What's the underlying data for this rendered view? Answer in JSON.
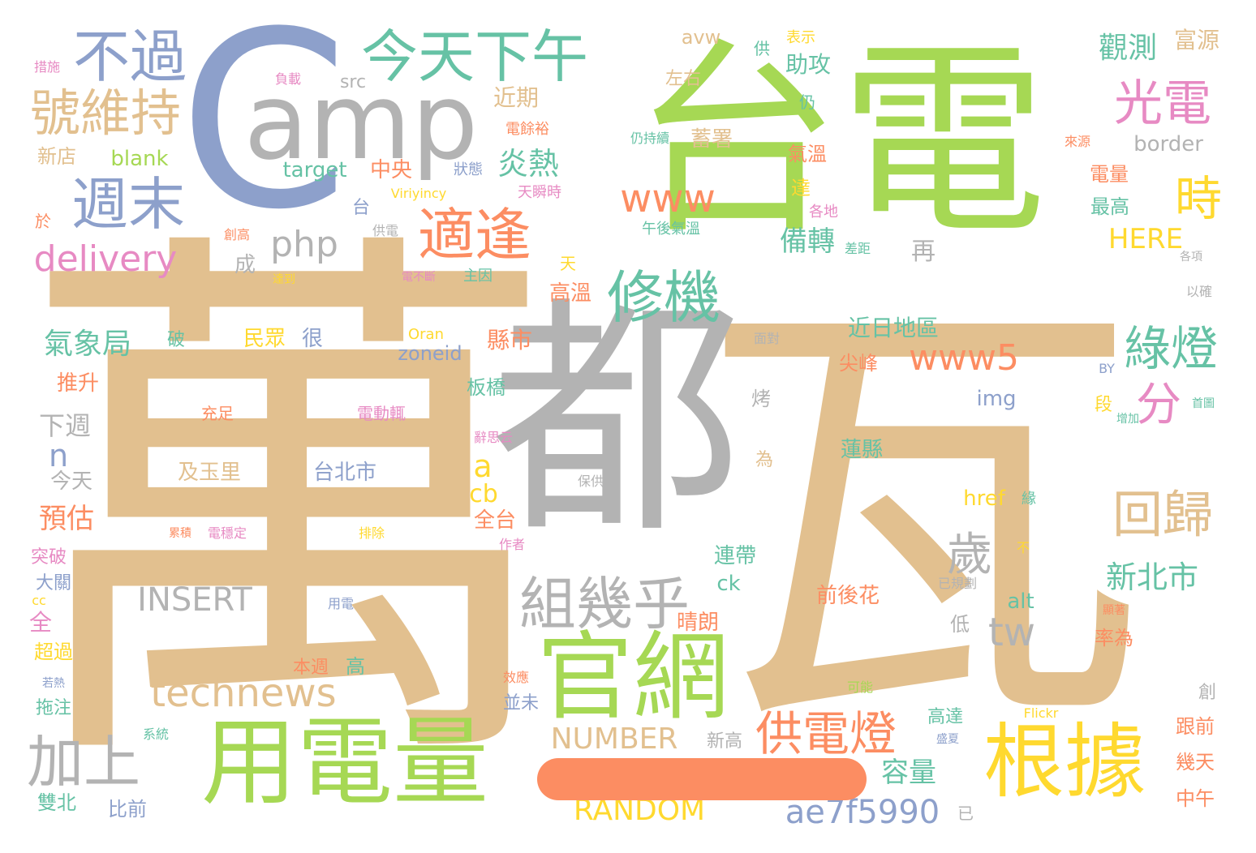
{
  "colors": {
    "tan": "#e2c08f",
    "gray": "#b3b3b3",
    "green": "#a6d854",
    "blue": "#8da0cb",
    "teal": "#66c2a5",
    "orange": "#fc8d62",
    "pink": "#e78ac3",
    "yellow": "#ffd92f"
  },
  "words": [
    {
      "text": "瓦"
    },
    {
      "text": "萬"
    },
    {
      "text": "台電"
    },
    {
      "text": "都"
    },
    {
      "text": "amp"
    },
    {
      "text": "C"
    },
    {
      "text": "用電量"
    },
    {
      "text": "官網"
    },
    {
      "text": "根據"
    },
    {
      "text": "今天下午"
    },
    {
      "text": "不過"
    },
    {
      "text": "號維持"
    },
    {
      "text": "週末"
    },
    {
      "text": "適逢"
    },
    {
      "text": "修機"
    },
    {
      "text": "光電"
    },
    {
      "text": "時"
    },
    {
      "text": "www"
    },
    {
      "text": "組幾乎"
    },
    {
      "text": "回歸"
    },
    {
      "text": "加上"
    },
    {
      "text": "technews"
    },
    {
      "text": "供電燈"
    },
    {
      "text": "綠燈"
    },
    {
      "text": "www5"
    },
    {
      "text": "delivery"
    },
    {
      "text": "php"
    },
    {
      "text": "歲"
    },
    {
      "text": "分"
    },
    {
      "text": "tw"
    },
    {
      "text": "INSERT"
    },
    {
      "text": "NUMBER"
    },
    {
      "text": "RANDOM"
    },
    {
      "text": "ae7f5990"
    },
    {
      "text": "新北市"
    },
    {
      "text": "觀測"
    },
    {
      "text": "炎熱"
    },
    {
      "text": "備轉"
    },
    {
      "text": "氣象局"
    },
    {
      "text": "容量"
    },
    {
      "text": "預估"
    },
    {
      "text": "下週"
    },
    {
      "text": "HERE"
    },
    {
      "text": "target"
    },
    {
      "text": "blank"
    },
    {
      "text": "border"
    },
    {
      "text": "zoneid"
    },
    {
      "text": "href"
    },
    {
      "text": "img"
    },
    {
      "text": "alt"
    },
    {
      "text": "cb"
    },
    {
      "text": "ck"
    },
    {
      "text": "a"
    },
    {
      "text": "n"
    },
    {
      "text": "src"
    },
    {
      "text": "avw"
    },
    {
      "text": "再"
    },
    {
      "text": "近日地區"
    },
    {
      "text": "蓄署"
    },
    {
      "text": "助攻"
    },
    {
      "text": "近期"
    },
    {
      "text": "富源"
    },
    {
      "text": "中央"
    },
    {
      "text": "民眾"
    },
    {
      "text": "很"
    },
    {
      "text": "縣市"
    },
    {
      "text": "板橋"
    },
    {
      "text": "推升"
    },
    {
      "text": "今天"
    },
    {
      "text": "及玉里"
    },
    {
      "text": "台北市"
    },
    {
      "text": "全台"
    },
    {
      "text": "連帶"
    },
    {
      "text": "晴朗"
    },
    {
      "text": "前後花"
    },
    {
      "text": "蓮縣"
    },
    {
      "text": "尖峰"
    },
    {
      "text": "高溫"
    },
    {
      "text": "左右"
    },
    {
      "text": "氣溫"
    },
    {
      "text": "電量"
    },
    {
      "text": "最高"
    },
    {
      "text": "新店"
    },
    {
      "text": "比前"
    },
    {
      "text": "雙北"
    },
    {
      "text": "中午"
    },
    {
      "text": "幾天"
    },
    {
      "text": "跟前"
    },
    {
      "text": "高達"
    },
    {
      "text": "新高"
    },
    {
      "text": "率為"
    },
    {
      "text": "超過"
    },
    {
      "text": "全"
    },
    {
      "text": "大關"
    },
    {
      "text": "突破"
    },
    {
      "text": "拖注"
    },
    {
      "text": "並未"
    },
    {
      "text": "高"
    },
    {
      "text": "本週"
    },
    {
      "text": "低"
    },
    {
      "text": "成"
    },
    {
      "text": "台"
    },
    {
      "text": "烤"
    },
    {
      "text": "為"
    },
    {
      "text": "達"
    },
    {
      "text": "段"
    },
    {
      "text": "仍"
    },
    {
      "text": "破"
    },
    {
      "text": "創"
    },
    {
      "text": "供"
    },
    {
      "text": "已"
    },
    {
      "text": "天"
    },
    {
      "text": "於"
    },
    {
      "text": "措施"
    },
    {
      "text": "負載"
    },
    {
      "text": "表示"
    },
    {
      "text": "電餘裕"
    },
    {
      "text": "仍持續"
    },
    {
      "text": "來源"
    },
    {
      "text": "狀態"
    },
    {
      "text": "天瞬時"
    },
    {
      "text": "Viriyincy"
    },
    {
      "text": "各地"
    },
    {
      "text": "午後氣溫"
    },
    {
      "text": "創高"
    },
    {
      "text": "供電"
    },
    {
      "text": "差距"
    },
    {
      "text": "各項"
    },
    {
      "text": "電不斷"
    },
    {
      "text": "主因"
    },
    {
      "text": "達到"
    },
    {
      "text": "以確"
    },
    {
      "text": "Oran"
    },
    {
      "text": "面對"
    },
    {
      "text": "BY"
    },
    {
      "text": "首圖"
    },
    {
      "text": "增加"
    },
    {
      "text": "充足"
    },
    {
      "text": "電動輒"
    },
    {
      "text": "辭思云"
    },
    {
      "text": "保供"
    },
    {
      "text": "緣"
    },
    {
      "text": "累積"
    },
    {
      "text": "電穩定"
    },
    {
      "text": "排除"
    },
    {
      "text": "作者"
    },
    {
      "text": "不"
    },
    {
      "text": "已規劃"
    },
    {
      "text": "用電"
    },
    {
      "text": "顯著"
    },
    {
      "text": "cc"
    },
    {
      "text": "效應"
    },
    {
      "text": "可能"
    },
    {
      "text": "若熱"
    },
    {
      "text": "系統"
    },
    {
      "text": "Flickr"
    },
    {
      "text": "盛夏"
    }
  ]
}
